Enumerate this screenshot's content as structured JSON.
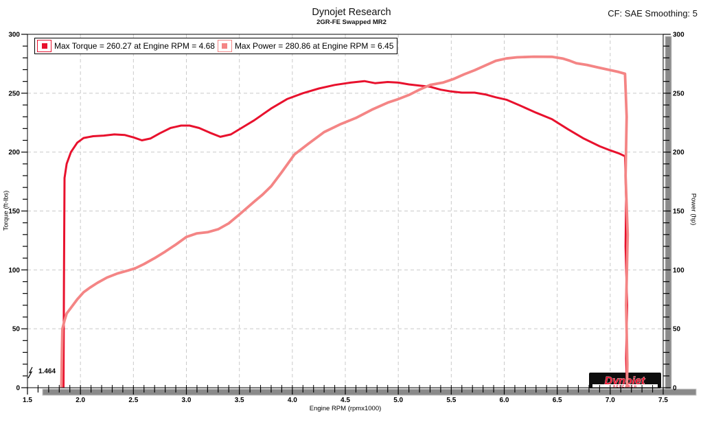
{
  "header": {
    "title": "Dynojet Research",
    "subtitle": "2GR-FE Swapped MR2",
    "smoothing_label": "CF: SAE Smoothing: 5"
  },
  "legend": {
    "torque_label": "Max Torque = 260.27 at Engine RPM = 4.68",
    "power_label": "Max Power = 280.86 at Engine RPM = 6.45"
  },
  "cursor_readout": "1.464",
  "logo": {
    "brand": "Dynojet",
    "sub": "R E S E A R C H"
  },
  "colors": {
    "torque": "#e8112d",
    "power": "#f48585",
    "grid": "#c9c9c9",
    "scrollbar": "#8a8a8a",
    "frame": "#000000"
  },
  "chart_data": {
    "type": "line",
    "title": "Dynojet Research",
    "subtitle": "2GR-FE Swapped MR2",
    "xlabel": "Engine RPM (rpmx1000)",
    "ylabel_left": "Torque (ft-lbs)",
    "ylabel_right": "Power (hp)",
    "xlim": [
      1.5,
      7.5
    ],
    "ylim": [
      0,
      300
    ],
    "x_major_step": 0.5,
    "x_minor_step": 0.1,
    "y_major_step": 50,
    "y_minor_step": 10,
    "grid": "dashed",
    "x_tick_labels": [
      "1.5",
      "2.0",
      "2.5",
      "3.0",
      "3.5",
      "4.0",
      "4.5",
      "5.0",
      "5.5",
      "6.0",
      "6.5",
      "7.0",
      "7.5"
    ],
    "y_tick_labels": [
      "0",
      "50",
      "100",
      "150",
      "200",
      "250",
      "300"
    ],
    "series": [
      {
        "name": "Torque",
        "axis": "left",
        "units": "ft-lbs",
        "color": "#e8112d",
        "max": {
          "value": 260.27,
          "rpm": 4.68
        },
        "points": [
          [
            1.84,
            0
          ],
          [
            1.845,
            95
          ],
          [
            1.85,
            178
          ],
          [
            1.87,
            190
          ],
          [
            1.91,
            200
          ],
          [
            1.97,
            208
          ],
          [
            2.03,
            212
          ],
          [
            2.12,
            213.5
          ],
          [
            2.22,
            214
          ],
          [
            2.32,
            215
          ],
          [
            2.42,
            214.5
          ],
          [
            2.5,
            212.5
          ],
          [
            2.58,
            210
          ],
          [
            2.66,
            211.5
          ],
          [
            2.75,
            216
          ],
          [
            2.85,
            220.5
          ],
          [
            2.95,
            222.5
          ],
          [
            3.03,
            222.5
          ],
          [
            3.12,
            220.5
          ],
          [
            3.22,
            216.5
          ],
          [
            3.32,
            213
          ],
          [
            3.42,
            215
          ],
          [
            3.52,
            220.5
          ],
          [
            3.64,
            227
          ],
          [
            3.8,
            237
          ],
          [
            3.95,
            245
          ],
          [
            4.1,
            250
          ],
          [
            4.25,
            254
          ],
          [
            4.4,
            257
          ],
          [
            4.55,
            259
          ],
          [
            4.68,
            260.3
          ],
          [
            4.78,
            258.5
          ],
          [
            4.9,
            259.5
          ],
          [
            5.0,
            259
          ],
          [
            5.1,
            257.5
          ],
          [
            5.2,
            256.5
          ],
          [
            5.3,
            255.5
          ],
          [
            5.4,
            253
          ],
          [
            5.5,
            251.5
          ],
          [
            5.6,
            250.5
          ],
          [
            5.72,
            250.5
          ],
          [
            5.82,
            249
          ],
          [
            5.92,
            246.5
          ],
          [
            6.02,
            244.5
          ],
          [
            6.15,
            239.5
          ],
          [
            6.3,
            233.5
          ],
          [
            6.45,
            228
          ],
          [
            6.6,
            219.5
          ],
          [
            6.75,
            211.5
          ],
          [
            6.9,
            205
          ],
          [
            7.0,
            201.5
          ],
          [
            7.08,
            199
          ],
          [
            7.14,
            196.5
          ],
          [
            7.15,
            160
          ],
          [
            7.145,
            120
          ],
          [
            7.16,
            70
          ],
          [
            7.15,
            25
          ],
          [
            7.158,
            0
          ]
        ]
      },
      {
        "name": "Power",
        "axis": "right",
        "units": "hp",
        "color": "#f48585",
        "max": {
          "value": 280.86,
          "rpm": 6.45
        },
        "points": [
          [
            1.82,
            0
          ],
          [
            1.825,
            30
          ],
          [
            1.83,
            50
          ],
          [
            1.85,
            57
          ],
          [
            1.87,
            63
          ],
          [
            1.92,
            69
          ],
          [
            1.97,
            75
          ],
          [
            2.03,
            81
          ],
          [
            2.09,
            85
          ],
          [
            2.16,
            89
          ],
          [
            2.25,
            93.5
          ],
          [
            2.35,
            97
          ],
          [
            2.45,
            99.5
          ],
          [
            2.52,
            101.5
          ],
          [
            2.6,
            105
          ],
          [
            2.7,
            110
          ],
          [
            2.8,
            115.5
          ],
          [
            2.9,
            121.5
          ],
          [
            3.0,
            128
          ],
          [
            3.1,
            131
          ],
          [
            3.2,
            132
          ],
          [
            3.3,
            134.5
          ],
          [
            3.4,
            139.5
          ],
          [
            3.5,
            147
          ],
          [
            3.64,
            158
          ],
          [
            3.72,
            164
          ],
          [
            3.8,
            171
          ],
          [
            3.9,
            183
          ],
          [
            4.02,
            198
          ],
          [
            4.15,
            207
          ],
          [
            4.3,
            217
          ],
          [
            4.45,
            223.5
          ],
          [
            4.6,
            229
          ],
          [
            4.75,
            236
          ],
          [
            4.9,
            242
          ],
          [
            5.0,
            245
          ],
          [
            5.1,
            248.5
          ],
          [
            5.2,
            253
          ],
          [
            5.3,
            257
          ],
          [
            5.42,
            259
          ],
          [
            5.52,
            262
          ],
          [
            5.62,
            266
          ],
          [
            5.72,
            269.5
          ],
          [
            5.82,
            273.5
          ],
          [
            5.92,
            277.5
          ],
          [
            6.02,
            279.5
          ],
          [
            6.12,
            280.5
          ],
          [
            6.28,
            281
          ],
          [
            6.45,
            280.9
          ],
          [
            6.55,
            279.5
          ],
          [
            6.62,
            277.5
          ],
          [
            6.68,
            275.5
          ],
          [
            6.78,
            274
          ],
          [
            6.88,
            272
          ],
          [
            6.98,
            270
          ],
          [
            7.08,
            268
          ],
          [
            7.14,
            266.5
          ],
          [
            7.155,
            230
          ],
          [
            7.145,
            180
          ],
          [
            7.165,
            130
          ],
          [
            7.15,
            70
          ],
          [
            7.162,
            20
          ],
          [
            7.158,
            0
          ]
        ]
      }
    ]
  }
}
